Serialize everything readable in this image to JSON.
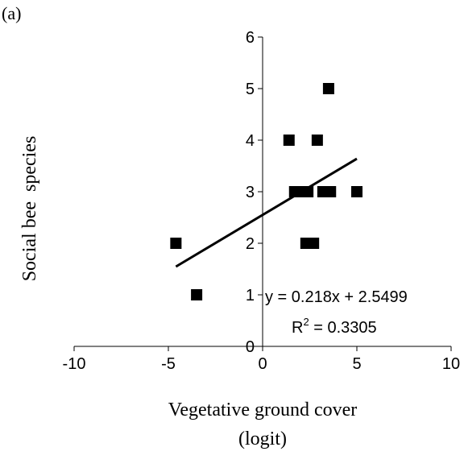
{
  "panel_label": "(a)",
  "chart_data": {
    "type": "scatter",
    "title": "",
    "xlabel_line1": "Vegetative ground cover",
    "xlabel_line2": "(logit)",
    "ylabel": "Social bee  species",
    "xlim": [
      -10,
      10
    ],
    "ylim": [
      0,
      6
    ],
    "x_ticks": [
      -10,
      -5,
      0,
      5,
      10
    ],
    "y_ticks": [
      0,
      1,
      2,
      3,
      4,
      5,
      6
    ],
    "x_tick_labels": [
      "-10",
      "-5",
      "0",
      "5",
      "10"
    ],
    "y_tick_labels": [
      "0",
      "1",
      "2",
      "3",
      "4",
      "5",
      "6"
    ],
    "grid": false,
    "marker": "square",
    "marker_color": "#000000",
    "points": [
      {
        "x": -4.6,
        "y": 2
      },
      {
        "x": -3.5,
        "y": 1
      },
      {
        "x": 1.4,
        "y": 4
      },
      {
        "x": 1.7,
        "y": 3
      },
      {
        "x": 2.0,
        "y": 3
      },
      {
        "x": 2.3,
        "y": 3
      },
      {
        "x": 2.4,
        "y": 3
      },
      {
        "x": 2.3,
        "y": 2
      },
      {
        "x": 2.7,
        "y": 2
      },
      {
        "x": 2.9,
        "y": 4
      },
      {
        "x": 3.2,
        "y": 3
      },
      {
        "x": 3.5,
        "y": 5
      },
      {
        "x": 3.6,
        "y": 3
      },
      {
        "x": 5.0,
        "y": 3
      }
    ],
    "trendline": {
      "slope": 0.218,
      "intercept": 2.5499,
      "x_range": [
        -4.6,
        5.0
      ],
      "color": "#000000"
    },
    "annotations": {
      "equation": "y = 0.218x + 2.5499",
      "r2_prefix": "R",
      "r2_sup": "2",
      "r2_suffix": " = 0.3305"
    }
  }
}
